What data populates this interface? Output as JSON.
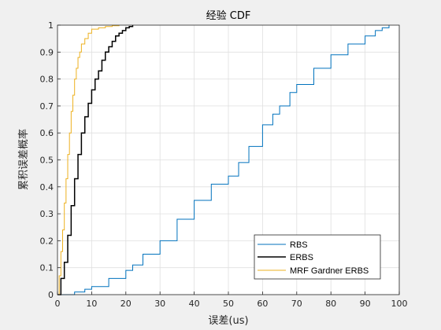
{
  "chart_data": {
    "type": "line",
    "title": "经验 CDF",
    "xlabel": "误差(us)",
    "ylabel": "累积误差概率",
    "xlim": [
      0,
      100
    ],
    "ylim": [
      0,
      1
    ],
    "x_ticks": [
      "0",
      "10",
      "20",
      "30",
      "40",
      "50",
      "60",
      "70",
      "80",
      "90",
      "100"
    ],
    "y_ticks": [
      "0",
      "0.1",
      "0.2",
      "0.3",
      "0.4",
      "0.5",
      "0.6",
      "0.7",
      "0.8",
      "0.9",
      "1"
    ],
    "grid": true,
    "legend_position": "bottom-right",
    "series": [
      {
        "name": "RBS",
        "color": "#0072bd",
        "x": [
          0,
          3,
          5,
          8,
          10,
          15,
          20,
          22,
          25,
          30,
          35,
          40,
          45,
          50,
          53,
          56,
          60,
          63,
          65,
          68,
          70,
          75,
          80,
          85,
          90,
          93,
          95,
          97
        ],
        "y": [
          0,
          0,
          0.01,
          0.02,
          0.03,
          0.06,
          0.09,
          0.11,
          0.15,
          0.2,
          0.28,
          0.35,
          0.41,
          0.44,
          0.49,
          0.55,
          0.63,
          0.67,
          0.7,
          0.75,
          0.78,
          0.84,
          0.89,
          0.93,
          0.96,
          0.98,
          0.99,
          1.0
        ]
      },
      {
        "name": "ERBS",
        "color": "#000000",
        "x": [
          0,
          1,
          2,
          3,
          4,
          5,
          6,
          7,
          8,
          9,
          10,
          11,
          12,
          13,
          14,
          15,
          16,
          17,
          18,
          19,
          20,
          21,
          22
        ],
        "y": [
          0,
          0.06,
          0.12,
          0.22,
          0.33,
          0.43,
          0.52,
          0.6,
          0.66,
          0.71,
          0.76,
          0.8,
          0.83,
          0.87,
          0.9,
          0.92,
          0.94,
          0.96,
          0.97,
          0.98,
          0.99,
          0.995,
          1.0
        ]
      },
      {
        "name": "MRF Gardner ERBS",
        "color": "#edb120",
        "x": [
          0,
          0.5,
          1,
          1.5,
          2,
          2.5,
          3,
          3.5,
          4,
          4.5,
          5,
          5.5,
          6,
          6.5,
          7,
          8,
          9,
          10,
          12,
          14,
          16,
          18
        ],
        "y": [
          0,
          0.07,
          0.16,
          0.24,
          0.34,
          0.43,
          0.52,
          0.6,
          0.68,
          0.74,
          0.8,
          0.84,
          0.88,
          0.9,
          0.93,
          0.95,
          0.97,
          0.985,
          0.99,
          0.995,
          0.998,
          1.0
        ]
      }
    ]
  }
}
